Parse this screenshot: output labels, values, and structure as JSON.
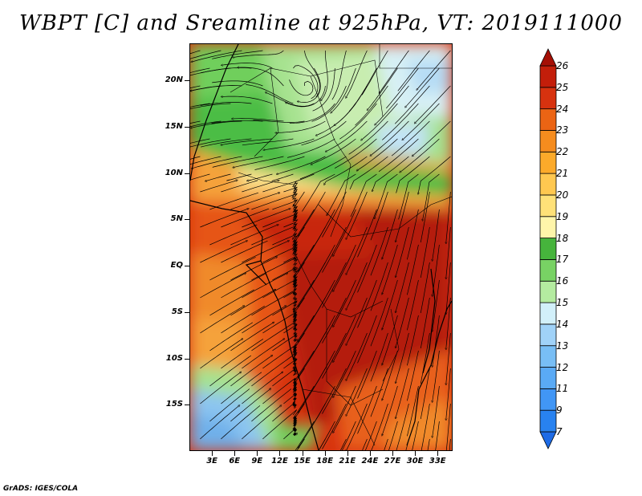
{
  "title": "WBPT [C] and Sreamline at 925hPa, VT: 2019111000",
  "credit": "GrADS: IGES/COLA",
  "map": {
    "lon_range": [
      0,
      35
    ],
    "lat_range": [
      -20,
      24
    ],
    "y_axis_labels": [
      "20N",
      "15N",
      "10N",
      "5N",
      "EQ",
      "5S",
      "10S",
      "15S"
    ],
    "y_axis_values": [
      20,
      15,
      10,
      5,
      0,
      -5,
      -10,
      -15
    ],
    "x_axis_labels": [
      "3E",
      "6E",
      "9E",
      "12E",
      "15E",
      "18E",
      "21E",
      "24E",
      "27E",
      "30E",
      "33E"
    ],
    "x_axis_values": [
      3,
      6,
      9,
      12,
      15,
      18,
      21,
      24,
      27,
      30,
      33
    ]
  },
  "colorbar": {
    "labels": [
      "7",
      "9",
      "11",
      "12",
      "13",
      "14",
      "15",
      "16",
      "17",
      "18",
      "19",
      "20",
      "21",
      "22",
      "23",
      "24",
      "25",
      "26"
    ],
    "colors": [
      "#1e6be6",
      "#2882f0",
      "#4196f5",
      "#5aaaf5",
      "#78bef5",
      "#a0d2f8",
      "#d2f0fa",
      "#b4eba0",
      "#78d264",
      "#46b43c",
      "#fff5aa",
      "#ffe178",
      "#ffc850",
      "#fcaa2a",
      "#f58c1e",
      "#eb6414",
      "#d7320f",
      "#c31e0a",
      "#a50f05"
    ]
  },
  "legend_colors": {
    "hot": "#b41e0a",
    "warm": "#e65519",
    "orange": "#f5a23a",
    "yellow": "#fae28c",
    "green": "#4bbd45",
    "lightgreen": "#a6e28f",
    "pale": "#d7f0f5",
    "blue": "#8cc5f0"
  }
}
